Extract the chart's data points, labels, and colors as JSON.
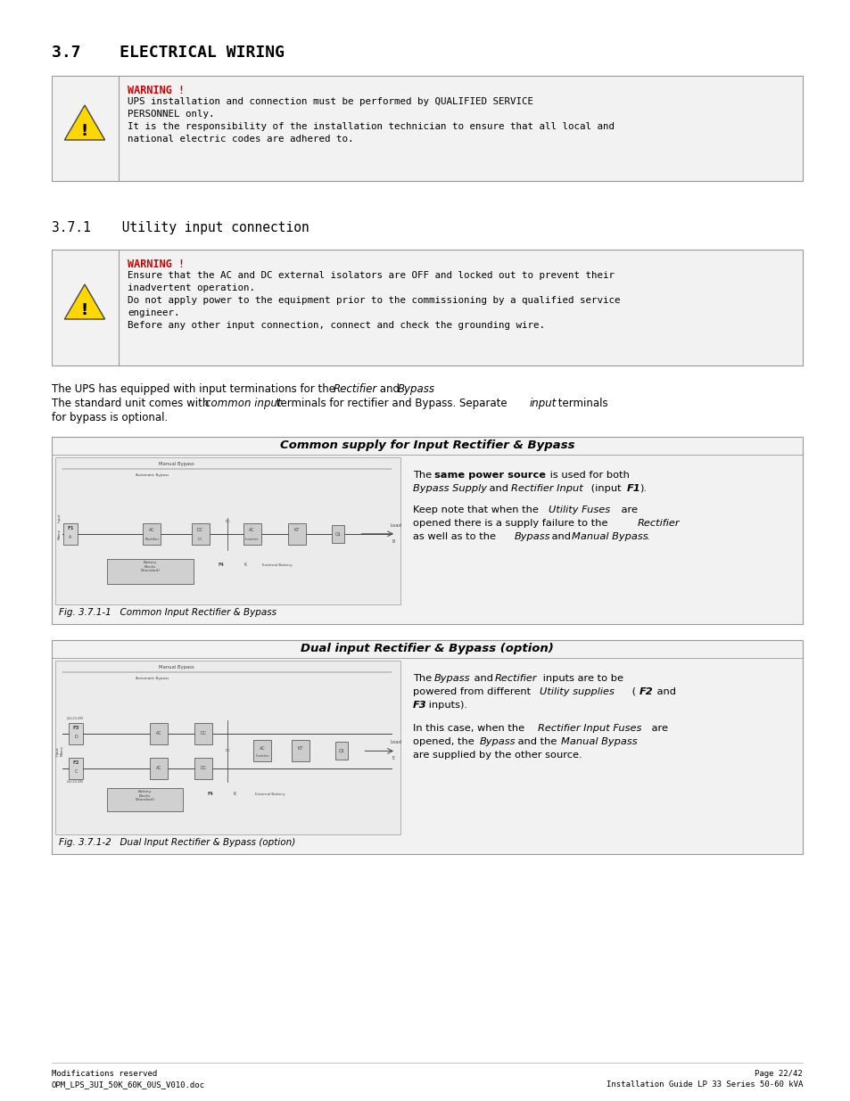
{
  "title_section": "3.7    ELECTRICAL WIRING",
  "subtitle_section": "3.7.1    Utility input connection",
  "warning1_header": "WARNING !",
  "warning1_lines": [
    "UPS installation and connection must be performed by QUALIFIED SERVICE",
    "PERSONNEL only.",
    "It is the responsibility of the installation technician to ensure that all local and",
    "national electric codes are adhered to."
  ],
  "warning2_header": "WARNING !",
  "warning2_lines": [
    "Ensure that the AC and DC external isolators are OFF and locked out to prevent their",
    "inadvertent operation.",
    "Do not apply power to the equipment prior to the commissioning by a qualified service",
    "engineer.",
    "Before any other input connection, connect and check the grounding wire."
  ],
  "body1": "The UPS has equipped with input terminations for the ",
  "body1_italic1": "Rectifier",
  "body1_mid": " and ",
  "body1_italic2": "Bypass",
  "body1_end": ".",
  "body2_start": "The standard unit comes with ",
  "body2_italic1": "common input",
  "body2_mid": " terminals for rectifier and Bypass. Separate ",
  "body2_italic2": "input",
  "body2_end": " terminals",
  "body3": "for bypass is optional.",
  "box1_title": "Common supply for Input Rectifier & Bypass",
  "box1_fig": "Fig. 3.7.1-1   Common Input Rectifier & Bypass",
  "box2_title": "Dual input Rectifier & Bypass (option)",
  "box2_fig": "Fig. 3.7.1-2   Dual Input Rectifier & Bypass (option)",
  "footer_left1": "Modifications reserved",
  "footer_left2": "OPM_LPS_3UI_50K_60K_0US_V010.doc",
  "footer_right1": "Page 22/42",
  "footer_right2": "Installation Guide LP 33 Series 50-60 kVA",
  "bg_color": "#ffffff",
  "box_bg": "#f2f2f2",
  "warn_red": "#cc0000",
  "black": "#000000",
  "gray_border": "#999999",
  "icon_yellow": "#FFD700",
  "icon_border": "#444444",
  "diag_bg": "#e0e0e0"
}
